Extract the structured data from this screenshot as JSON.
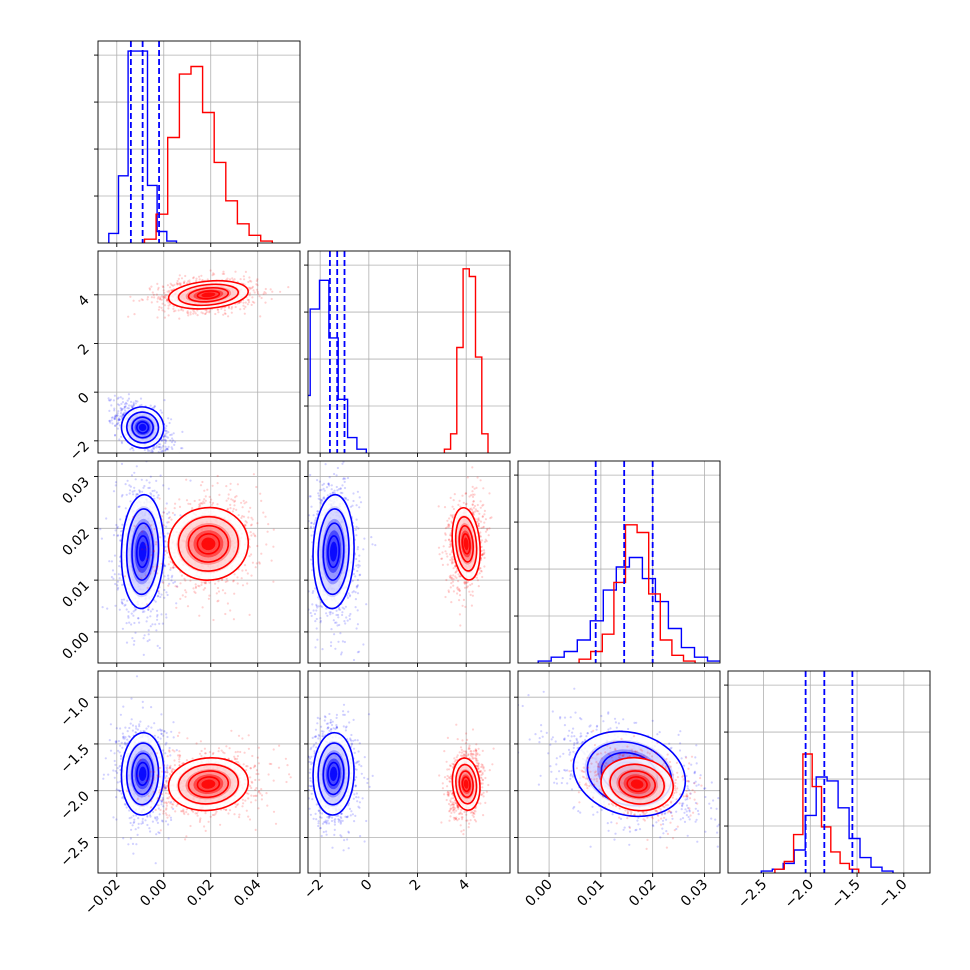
{
  "chart_data": {
    "type": "scatter",
    "subtype": "corner-plot",
    "colors": {
      "blue": "#0000ff",
      "red": "#ff0000",
      "grid": "#b0b0b0"
    },
    "parameters": [
      {
        "range": [
          -0.028,
          0.058
        ],
        "ticks": [
          -0.02,
          0.0,
          0.02,
          0.04
        ],
        "tick_labels": [
          "−0.02",
          "0.00",
          "0.02",
          "0.04"
        ]
      },
      {
        "range": [
          -2.5,
          5.8
        ],
        "ticks": [
          -2,
          0,
          2,
          4
        ],
        "tick_labels": [
          "−2",
          "0",
          "2",
          "4"
        ]
      },
      {
        "range": [
          -0.006,
          0.033
        ],
        "ticks": [
          0.0,
          0.01,
          0.02,
          0.03
        ],
        "tick_labels": [
          "0.00",
          "0.01",
          "0.02",
          "0.03"
        ]
      },
      {
        "range": [
          -2.88,
          -0.72
        ],
        "ticks": [
          -2.5,
          -2.0,
          -1.5,
          -1.0
        ],
        "tick_labels": [
          "−2.5",
          "−2.0",
          "−1.5",
          "−1.0"
        ]
      }
    ],
    "series": [
      {
        "color": "#0000ff",
        "mean": [
          -0.009,
          -1.45,
          0.0155,
          -1.82
        ],
        "sd": [
          0.0045,
          0.42,
          0.0055,
          0.22
        ],
        "quantiles": [
          [
            -0.014,
            -0.009,
            -0.002
          ],
          [
            -1.6,
            -1.3,
            -1.0
          ],
          [
            0.009,
            0.0145,
            0.02
          ],
          [
            -2.05,
            -1.85,
            -1.55
          ]
        ]
      },
      {
        "color": "#ff0000",
        "mean": [
          0.019,
          4.0,
          0.017,
          -1.93
        ],
        "sd": [
          0.0085,
          0.28,
          0.0035,
          0.14
        ]
      }
    ],
    "histograms": [
      {
        "param": 0,
        "blue": [
          0.05,
          0.35,
          1.0,
          1.0,
          0.3,
          0.06,
          0.01
        ],
        "red": [
          0.02,
          0.15,
          0.55,
          0.88,
          0.92,
          0.68,
          0.42,
          0.22,
          0.1,
          0.04,
          0.01
        ]
      },
      {
        "param": 1,
        "blue": [
          0.3,
          0.75,
          0.9,
          0.6,
          0.28,
          0.08,
          0.02
        ],
        "red": [
          0.02,
          0.1,
          0.55,
          0.96,
          0.92,
          0.5,
          0.1
        ]
      },
      {
        "param": 2,
        "blue": [
          0.01,
          0.03,
          0.06,
          0.12,
          0.22,
          0.38,
          0.5,
          0.55,
          0.44,
          0.32,
          0.18,
          0.08,
          0.03,
          0.01
        ],
        "red": [
          0.02,
          0.06,
          0.15,
          0.42,
          0.72,
          0.68,
          0.36,
          0.12,
          0.04,
          0.01
        ]
      },
      {
        "param": 3,
        "blue": [
          0.01,
          0.02,
          0.05,
          0.12,
          0.3,
          0.5,
          0.48,
          0.34,
          0.18,
          0.08,
          0.03,
          0.01
        ],
        "red": [
          0.02,
          0.06,
          0.2,
          0.62,
          0.45,
          0.24,
          0.11,
          0.05,
          0.02
        ]
      }
    ]
  }
}
